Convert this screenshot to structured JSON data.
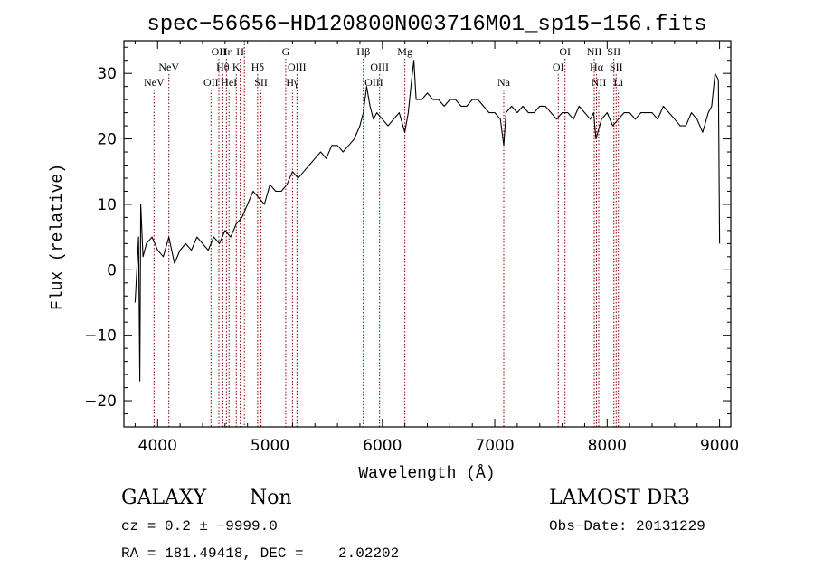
{
  "chart_data": {
    "type": "line",
    "title": "spec−56656−HD120800N003716M01_sp15−156.fits",
    "xlabel": "Wavelength (Å)",
    "ylabel": "Flux (relative)",
    "xlim": [
      3700,
      9100
    ],
    "ylim": [
      -24,
      35
    ],
    "xticks": [
      4000,
      5000,
      6000,
      7000,
      8000,
      9000
    ],
    "yticks": [
      -20,
      -10,
      0,
      10,
      20,
      30
    ],
    "grid": false,
    "line_color": "#000000",
    "marker_color": "#8b0000",
    "series": [
      {
        "x": [
          3800,
          3830,
          3842,
          3850,
          3870,
          3900,
          3950,
          4000,
          4050,
          4100,
          4150,
          4200,
          4250,
          4300,
          4350,
          4400,
          4450,
          4500,
          4550,
          4600,
          4650,
          4700,
          4750,
          4800,
          4850,
          4900,
          4950,
          5000,
          5050,
          5100,
          5150,
          5200,
          5250,
          5300,
          5350,
          5400,
          5450,
          5500,
          5550,
          5600,
          5650,
          5700,
          5750,
          5800,
          5830,
          5860,
          5890,
          5920,
          5950,
          6000,
          6050,
          6100,
          6150,
          6200,
          6230,
          6260,
          6280,
          6300,
          6350,
          6400,
          6450,
          6500,
          6550,
          6600,
          6650,
          6700,
          6750,
          6800,
          6850,
          6900,
          6950,
          7000,
          7050,
          7080,
          7100,
          7150,
          7200,
          7250,
          7300,
          7350,
          7400,
          7450,
          7500,
          7550,
          7600,
          7650,
          7700,
          7750,
          7800,
          7850,
          7880,
          7900,
          7950,
          8000,
          8050,
          8100,
          8150,
          8200,
          8250,
          8300,
          8350,
          8400,
          8450,
          8500,
          8550,
          8600,
          8650,
          8700,
          8750,
          8800,
          8850,
          8900,
          8930,
          8960,
          8990,
          9000
        ],
        "y": [
          -5,
          5,
          -17,
          10,
          2,
          4,
          5,
          3,
          2,
          5,
          1,
          3,
          4,
          3,
          5,
          4,
          3,
          5,
          4,
          6,
          5,
          7,
          8,
          10,
          12,
          11,
          10,
          13,
          12,
          12,
          13,
          15,
          14,
          15,
          16,
          17,
          18,
          17,
          19,
          19,
          18,
          19,
          20,
          22,
          24,
          28,
          25,
          23,
          24,
          23,
          22,
          23,
          24,
          21,
          24,
          29,
          32,
          26,
          26,
          27,
          26,
          26,
          25,
          26,
          26,
          25,
          25,
          26,
          26,
          25,
          24,
          24,
          23,
          19,
          24,
          25,
          24,
          25,
          24,
          24,
          25,
          25,
          24,
          23,
          24,
          24,
          23,
          25,
          24,
          23,
          24,
          20,
          23,
          24,
          22,
          23,
          24,
          24,
          23,
          24,
          24,
          24,
          23,
          25,
          24,
          23,
          22,
          22,
          24,
          23,
          21,
          24,
          25,
          30,
          29,
          4
        ]
      }
    ],
    "lines": [
      {
        "x": 3968,
        "label": "NeV",
        "row": 3
      },
      {
        "x": 4100,
        "label": "NeV",
        "row": 2
      },
      {
        "x": 4475,
        "label": "OII",
        "row": 3
      },
      {
        "x": 4545,
        "label": "OII",
        "row": 1
      },
      {
        "x": 4580,
        "label": "Hθ",
        "row": 2
      },
      {
        "x": 4612,
        "label": "Hη",
        "row": 1
      },
      {
        "x": 4635,
        "label": "HeI",
        "row": 3
      },
      {
        "x": 4700,
        "label": "K",
        "row": 2
      },
      {
        "x": 4735,
        "label": "H",
        "row": 1
      },
      {
        "x": 4772,
        "label": "",
        "row": 0
      },
      {
        "x": 4890,
        "label": "Hδ",
        "row": 2
      },
      {
        "x": 4920,
        "label": "SII",
        "row": 3
      },
      {
        "x": 5140,
        "label": "G",
        "row": 1
      },
      {
        "x": 5200,
        "label": "Hγ",
        "row": 3
      },
      {
        "x": 5240,
        "label": "OIII",
        "row": 2
      },
      {
        "x": 5830,
        "label": "Hβ",
        "row": 1
      },
      {
        "x": 5925,
        "label": "OIII",
        "row": 3
      },
      {
        "x": 5975,
        "label": "OIII",
        "row": 2
      },
      {
        "x": 6200,
        "label": "Mg",
        "row": 1
      },
      {
        "x": 7080,
        "label": "Na",
        "row": 3
      },
      {
        "x": 7565,
        "label": "OI",
        "row": 2
      },
      {
        "x": 7625,
        "label": "OI",
        "row": 1
      },
      {
        "x": 7885,
        "label": "NII",
        "row": 1
      },
      {
        "x": 7905,
        "label": "Hα",
        "row": 2
      },
      {
        "x": 7925,
        "label": "NII",
        "row": 3
      },
      {
        "x": 8060,
        "label": "SII",
        "row": 1
      },
      {
        "x": 8080,
        "label": "SII",
        "row": 2
      },
      {
        "x": 8100,
        "label": "Li",
        "row": 3
      }
    ]
  },
  "info": {
    "class": "GALAXY",
    "subclass": "Non",
    "survey": "LAMOST DR3",
    "cz_line": "cz = 0.2 ± −9999.0",
    "obs_date_line": "Obs−Date: 20131229",
    "radec_line": "RA = 181.49418, DEC =    2.02202"
  }
}
